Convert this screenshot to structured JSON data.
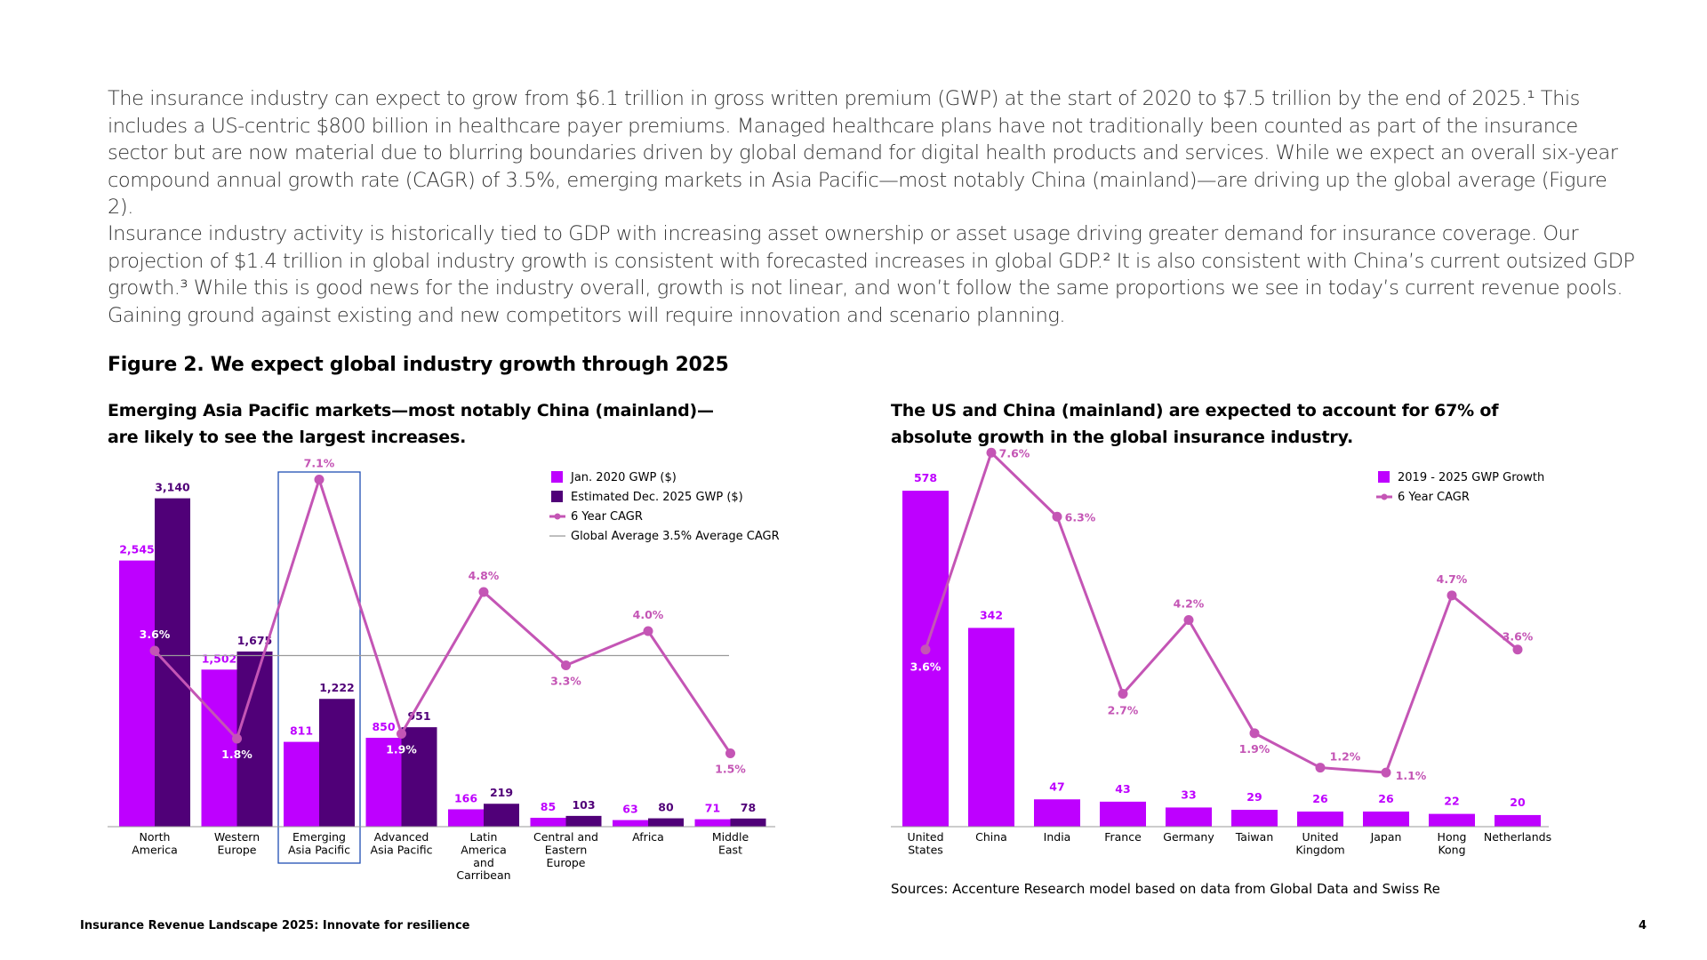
{
  "paragraphs": [
    "The insurance industry can expect to grow from $6.1 trillion in gross written premium (GWP) at the start of 2020 to $7.5 trillion by the end of 2025.¹ This includes a US-centric $800 billion in healthcare payer premiums. Managed healthcare plans have not traditionally been counted as part of the insurance sector but are now material due to blurring boundaries driven by global demand for digital health products and services. While we expect an overall six-year compound annual growth rate (CAGR) of 3.5%, emerging markets in Asia Pacific—most notably China (mainland)—are driving up the global average (Figure 2).",
    "Insurance industry activity is historically tied to GDP with increasing asset ownership or asset usage driving greater demand for insurance coverage. Our projection of $1.4 trillion in global industry growth is consistent with forecasted increases in global GDP.² It is also consistent with China’s current outsized GDP growth.³ While this is good news for the industry overall, growth is not linear, and won’t follow the same proportions we see in today’s current revenue pools. Gaining ground against existing and new competitors will require innovation and scenario planning."
  ],
  "figure_title": "Figure 2. We expect global industry growth through 2025",
  "colors": {
    "jan2020": "#BE00FF",
    "dec2025": "#500078",
    "cagr": "#C455B5",
    "global_avg": "#999999",
    "highlight_box": "#1F4FB4"
  },
  "chart_data": [
    {
      "type": "bar",
      "title": "Emerging Asia Pacific markets—most notably China (mainland)—are likely to see the largest increases.",
      "categories": [
        "North\nAmerica",
        "Western\nEurope",
        "Emerging\nAsia Pacific",
        "Advanced\nAsia Pacific",
        "Latin\nAmerica\nand\nCarribean",
        "Central and\nEastern\nEurope",
        "Africa",
        "Middle\nEast"
      ],
      "series": [
        {
          "name": "Jan. 2020 GWP ($)",
          "kind": "bar",
          "values": [
            2545,
            1502,
            811,
            850,
            166,
            85,
            63,
            71
          ],
          "labels": [
            "2,545",
            "1,502",
            "811",
            "850",
            "166",
            "85",
            "63",
            "71"
          ]
        },
        {
          "name": "Estimated Dec. 2025 GWP ($)",
          "kind": "bar",
          "values": [
            3140,
            1675,
            1222,
            951,
            219,
            103,
            80,
            78
          ],
          "labels": [
            "3,140",
            "1,675",
            "1,222",
            "951",
            "219",
            "103",
            "80",
            "78"
          ]
        },
        {
          "name": "6 Year CAGR",
          "kind": "line",
          "values": [
            3.6,
            1.8,
            7.1,
            1.9,
            4.8,
            3.3,
            4.0,
            1.5
          ],
          "labels": [
            "3.6%",
            "1.8%",
            "7.1%",
            "1.9%",
            "4.8%",
            "3.3%",
            "4.0%",
            "1.5%"
          ]
        },
        {
          "name": "Global Average 3.5% Average CAGR",
          "kind": "reference-line",
          "value": 3.5
        }
      ],
      "highlighted_category": "Emerging\nAsia Pacific",
      "ylim_bars": [
        0,
        3400
      ],
      "ylim_line": [
        0,
        8.0
      ],
      "legend": "top-right",
      "grid": false
    },
    {
      "type": "bar",
      "title": "The US and China (mainland) are expected to account for 67% of absolute growth in the global insurance industry.",
      "categories": [
        "United\nStates",
        "China",
        "India",
        "France",
        "Germany",
        "Taiwan",
        "United\nKingdom",
        "Japan",
        "Hong\nKong",
        "Netherlands"
      ],
      "series": [
        {
          "name": "2019 - 2025 GWP Growth",
          "kind": "bar",
          "values": [
            578,
            342,
            47,
            43,
            33,
            29,
            26,
            26,
            22,
            20
          ],
          "labels": [
            "578",
            "342",
            "47",
            "43",
            "33",
            "29",
            "26",
            "26",
            "22",
            "20"
          ]
        },
        {
          "name": "6 Year CAGR",
          "kind": "line",
          "values": [
            3.6,
            7.6,
            6.3,
            2.7,
            4.2,
            1.9,
            1.2,
            1.1,
            4.7,
            3.6
          ],
          "labels": [
            "3.6%",
            "7.6%",
            "6.3%",
            "2.7%",
            "4.2%",
            "1.9%",
            "1.2%",
            "1.1%",
            "4.7%",
            "3.6%"
          ]
        }
      ],
      "ylim_bars": [
        0,
        650
      ],
      "ylim_line": [
        0,
        8.4
      ],
      "legend": "top-right",
      "grid": false
    }
  ],
  "sources": "Sources: Accenture Research model based on data from Global Data and Swiss Re",
  "footer": {
    "title": "Insurance Revenue Landscape 2025: Innovate for resilience",
    "page": "4"
  }
}
